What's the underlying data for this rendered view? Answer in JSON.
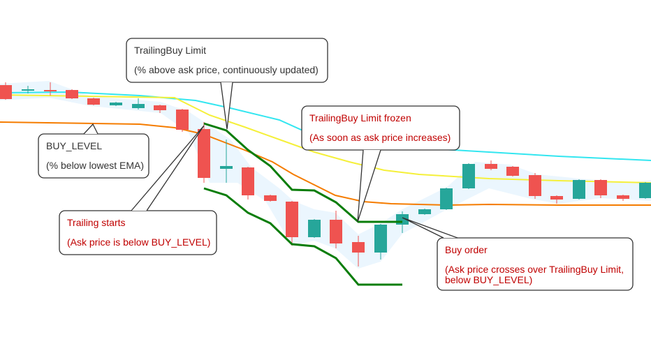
{
  "callouts": [
    {
      "title": "TrailingBuy Limit",
      "detail": [
        "(% above ask price, continuously updated)"
      ]
    },
    {
      "title": "BUY_LEVEL",
      "detail": [
        "(% below lowest EMA)"
      ]
    },
    {
      "title": "TrailingBuy Limit frozen",
      "detail": [
        "(As soon as ask price increases)"
      ]
    },
    {
      "title": "Trailing starts",
      "detail": [
        "(Ask price is below BUY_LEVEL)"
      ]
    },
    {
      "title": "Buy order",
      "detail": [
        "(Ask price crosses over TrailingBuy Limit,",
        "below BUY_LEVEL)"
      ]
    }
  ]
}
